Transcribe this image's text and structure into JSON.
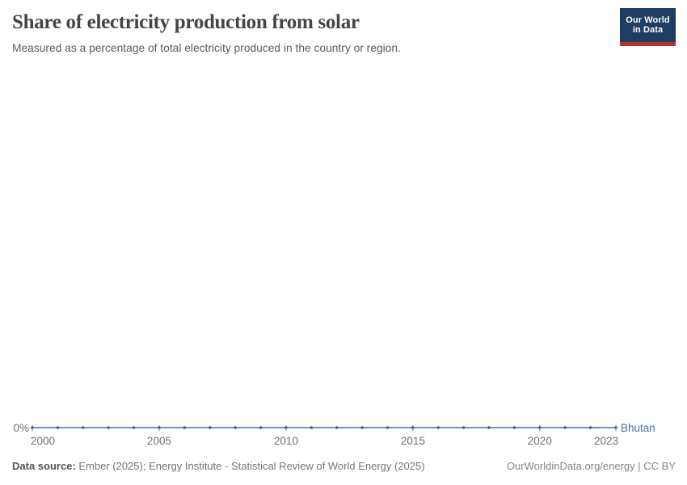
{
  "header": {
    "title": "Share of electricity production from solar",
    "subtitle": "Measured as a percentage of total electricity produced in the country or region."
  },
  "logo": {
    "line1": "Our World",
    "line2": "in Data",
    "bg_color": "#1d3d63",
    "accent_color": "#b5342c"
  },
  "chart_data": {
    "type": "line",
    "title": "Share of electricity production from solar",
    "xlabel": "",
    "ylabel": "",
    "x": [
      2000,
      2001,
      2002,
      2003,
      2004,
      2005,
      2006,
      2007,
      2008,
      2009,
      2010,
      2011,
      2012,
      2013,
      2014,
      2015,
      2016,
      2017,
      2018,
      2019,
      2020,
      2021,
      2022,
      2023
    ],
    "series": [
      {
        "name": "Bhutan",
        "color": "#4c6da6",
        "values": [
          0,
          0,
          0,
          0,
          0,
          0,
          0,
          0,
          0,
          0,
          0,
          0,
          0,
          0,
          0,
          0,
          0,
          0,
          0,
          0,
          0,
          0,
          0,
          0
        ]
      }
    ],
    "x_ticks": [
      2000,
      2005,
      2010,
      2015,
      2020,
      2023
    ],
    "y_ticks": [
      {
        "value": 0,
        "label": "0%"
      }
    ],
    "xlim": [
      2000,
      2023
    ],
    "ylim": [
      0,
      0
    ],
    "grid": false,
    "legend_position": "line-end-label",
    "entity_label": "Bhutan"
  },
  "footer": {
    "source_label": "Data source:",
    "source_text": " Ember (2025); Energy Institute - Statistical Review of World Energy (2025)",
    "license_text": "OurWorldinData.org/energy | CC BY"
  }
}
